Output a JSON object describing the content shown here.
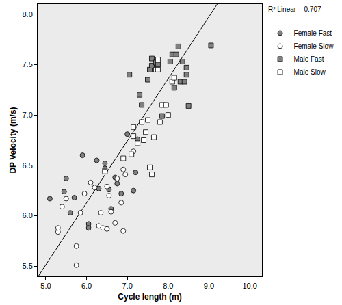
{
  "chart_data": {
    "type": "scatter",
    "x_label": "Cycle length (m)",
    "y_label": "DP Velocity (m/s)",
    "xlim": [
      4.8,
      10.3
    ],
    "ylim": [
      5.4,
      8.1
    ],
    "xticks": [
      {
        "value": 5,
        "label": "5.0"
      },
      {
        "value": 6,
        "label": "6.0"
      },
      {
        "value": 7,
        "label": "7.0"
      },
      {
        "value": 8,
        "label": "8.0"
      },
      {
        "value": 9,
        "label": "9.0"
      },
      {
        "value": 10,
        "label": "10.0"
      }
    ],
    "yticks": [
      5.5,
      {
        "value": 6,
        "label": "6.0"
      },
      6.5,
      {
        "value": 7,
        "label": "7.0"
      },
      7.5,
      {
        "value": 8,
        "label": "8.0"
      }
    ],
    "grid": false,
    "legend": "right",
    "annotations": [
      "R² Linear = 0.707"
    ],
    "fit_line": {
      "x": [
        4.8,
        9.3
      ],
      "values": [
        5.39,
        8.16
      ]
    },
    "series": [
      {
        "name": "Female Fast",
        "marker": "circle",
        "color": "#808080",
        "x": [
          5.1,
          5.45,
          5.5,
          5.6,
          5.7,
          5.9,
          6.05,
          6.05,
          6.25,
          6.3,
          6.45,
          6.45,
          6.55,
          6.6,
          6.7,
          6.75,
          6.85,
          7.0,
          7.15,
          7.2,
          7.25
        ],
        "values": [
          6.17,
          6.24,
          6.37,
          6.03,
          6.18,
          6.6,
          5.92,
          5.88,
          6.55,
          6.27,
          6.52,
          6.47,
          6.26,
          6.07,
          6.38,
          6.32,
          6.22,
          6.81,
          6.25,
          6.43,
          6.76
        ]
      },
      {
        "name": "Female Slow",
        "marker": "circle",
        "color": "#ffffff",
        "x": [
          5.3,
          5.3,
          5.4,
          5.5,
          5.75,
          5.75,
          5.85,
          5.95,
          6.1,
          6.2,
          6.3,
          6.35,
          6.4,
          6.45,
          6.5,
          6.5,
          6.55,
          6.6,
          6.7,
          6.75,
          6.85,
          6.9,
          6.9,
          6.95,
          7.15
        ],
        "values": [
          5.84,
          5.88,
          6.09,
          6.17,
          5.7,
          5.51,
          6.03,
          6.22,
          6.33,
          6.28,
          5.9,
          6.03,
          5.88,
          6.44,
          5.87,
          6.29,
          6.2,
          6.04,
          5.93,
          6.37,
          6.13,
          6.46,
          5.85,
          6.41,
          6.64
        ]
      },
      {
        "name": "Male Fast",
        "marker": "square",
        "color": "#808080",
        "x": [
          7.05,
          7.3,
          7.35,
          7.5,
          7.55,
          7.6,
          7.6,
          7.7,
          7.75,
          7.85,
          8.05,
          8.1,
          8.15,
          8.2,
          8.25,
          8.3,
          8.35,
          8.4,
          8.45,
          8.45,
          8.5,
          9.05
        ],
        "values": [
          7.4,
          7.2,
          7.1,
          7.35,
          7.45,
          7.49,
          7.56,
          7.52,
          7.5,
          6.99,
          7.53,
          7.6,
          7.27,
          7.6,
          7.68,
          7.33,
          7.53,
          7.33,
          7.47,
          7.4,
          7.09,
          7.69
        ]
      },
      {
        "name": "Male Slow",
        "marker": "square",
        "color": "#ffffff",
        "x": [
          6.45,
          6.9,
          7.1,
          7.15,
          7.15,
          7.25,
          7.35,
          7.4,
          7.45,
          7.5,
          7.55,
          7.6,
          7.65,
          7.7,
          7.75,
          7.75,
          7.8,
          7.85,
          7.95,
          8.0,
          8.1,
          8.15
        ],
        "values": [
          6.44,
          6.57,
          6.61,
          6.79,
          6.88,
          6.72,
          6.93,
          6.75,
          6.83,
          6.95,
          6.48,
          6.41,
          6.78,
          7.45,
          7.45,
          7.55,
          6.93,
          7.1,
          7.1,
          7.0,
          7.33,
          7.37
        ]
      }
    ]
  }
}
